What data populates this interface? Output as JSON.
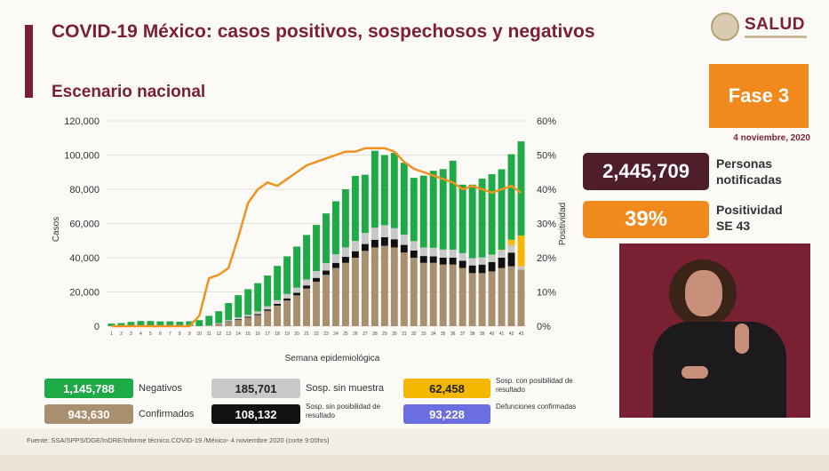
{
  "header": {
    "title": "COVID-19 México: casos positivos, sospechosos y negativos",
    "subtitle": "Escenario nacional",
    "logo_text": "SALUD"
  },
  "side": {
    "phase": "Fase 3",
    "date": "4 noviembre, 2020",
    "notified_value": "2,445,709",
    "notified_label_1": "Personas",
    "notified_label_2": "notificadas",
    "positivity_value": "39%",
    "positivity_label_1": "Positividad",
    "positivity_label_2": "SE 43"
  },
  "legend": {
    "negativos_value": "1,145,788",
    "negativos_label": "Negativos",
    "sin_muestra_value": "185,701",
    "sin_muestra_label": "Sosp. sin muestra",
    "con_posibilidad_value": "62,458",
    "con_posibilidad_label": "Sosp. con posibilidad de resultado",
    "confirmados_value": "943,630",
    "confirmados_label": "Confirmados",
    "sin_posibilidad_value": "108,132",
    "sin_posibilidad_label": "Sosp. sin posibilidad de resultado",
    "defunciones_value": "93,228",
    "defunciones_label": "Defunciones confirmadas"
  },
  "footer": {
    "source": "Fuente: SSA/SPPS/DGE/InDRE/Informe técnico.COVID-19 /México- 4 noviembre 2020 (corte 9:00hrs)"
  },
  "colors": {
    "confirmados": "#a88f6f",
    "sin_posibilidad": "#111111",
    "sin_muestra": "#c8c8c8",
    "con_posibilidad": "#f5b800",
    "negativos": "#1faa48",
    "positividad_line": "#f0931e",
    "brand": "#7a1f35"
  },
  "chart_data": {
    "type": "bar",
    "stacked": true,
    "xlabel": "Semana epidemiológica",
    "ylabel": "Casos",
    "y2label": "Positividad",
    "ylim": [
      0,
      120000
    ],
    "y2lim": [
      0,
      60
    ],
    "yticks": [
      "0",
      "20,000",
      "40,000",
      "60,000",
      "80,000",
      "100,000",
      "120,000"
    ],
    "y2ticks": [
      "0%",
      "10%",
      "20%",
      "30%",
      "40%",
      "50%",
      "60%"
    ],
    "categories": [
      "1",
      "2",
      "3",
      "4",
      "5",
      "6",
      "7",
      "8",
      "9",
      "10",
      "11",
      "12",
      "13",
      "14",
      "15",
      "16",
      "17",
      "18",
      "19",
      "20",
      "21",
      "22",
      "23",
      "24",
      "25",
      "26",
      "27",
      "28",
      "29",
      "30",
      "31",
      "32",
      "33",
      "34",
      "35",
      "36",
      "37",
      "38",
      "39",
      "40",
      "41",
      "42",
      "43"
    ],
    "series": [
      {
        "name": "Confirmados",
        "color_key": "confirmados",
        "values": [
          0,
          0,
          0,
          0,
          0,
          0,
          0,
          0,
          0,
          0,
          300,
          1200,
          2500,
          3800,
          5000,
          6500,
          9000,
          12000,
          15000,
          18000,
          22000,
          26000,
          30000,
          34000,
          37000,
          40000,
          44000,
          46000,
          47000,
          46000,
          43000,
          40000,
          37000,
          37000,
          36000,
          36000,
          34000,
          31000,
          31000,
          32000,
          34000,
          35000,
          33000
        ]
      },
      {
        "name": "Sosp. sin posibilidad de resultado",
        "color_key": "sin_posibilidad",
        "values": [
          0,
          0,
          0,
          0,
          0,
          0,
          0,
          0,
          0,
          0,
          50,
          150,
          300,
          400,
          500,
          600,
          800,
          1000,
          1200,
          1500,
          1800,
          2200,
          2500,
          3000,
          3500,
          3800,
          4000,
          4500,
          5000,
          4800,
          4500,
          4200,
          4000,
          3800,
          4000,
          4000,
          4200,
          4500,
          5000,
          5500,
          6000,
          8000,
          0
        ]
      },
      {
        "name": "Sosp. sin muestra",
        "color_key": "sin_muestra",
        "values": [
          0,
          0,
          0,
          0,
          0,
          0,
          0,
          0,
          0,
          0,
          150,
          400,
          700,
          900,
          1100,
          1500,
          1800,
          2200,
          2600,
          3000,
          3500,
          4000,
          4400,
          5000,
          5500,
          6000,
          6500,
          7000,
          7000,
          6500,
          6000,
          5500,
          5000,
          5000,
          4800,
          4700,
          4500,
          4200,
          4200,
          4300,
          4400,
          4500,
          2000
        ]
      },
      {
        "name": "Sosp. con posibilidad de resultado",
        "color_key": "con_posibilidad",
        "values": [
          0,
          0,
          0,
          0,
          0,
          0,
          0,
          0,
          0,
          0,
          0,
          0,
          0,
          0,
          0,
          0,
          0,
          0,
          0,
          0,
          0,
          0,
          0,
          0,
          0,
          0,
          0,
          0,
          0,
          0,
          0,
          0,
          0,
          0,
          0,
          0,
          0,
          0,
          0,
          0,
          300,
          3000,
          18000
        ]
      },
      {
        "name": "Negativos",
        "color_key": "negativos",
        "values": [
          1500,
          1800,
          2500,
          3000,
          3000,
          2800,
          2800,
          2600,
          2800,
          3500,
          5500,
          7000,
          10000,
          13000,
          15000,
          16500,
          18000,
          20000,
          22000,
          24000,
          26000,
          27000,
          29000,
          31000,
          34000,
          38000,
          34000,
          45000,
          41000,
          44000,
          42000,
          37000,
          42000,
          45000,
          47000,
          52000,
          40000,
          43000,
          46000,
          47000,
          47000,
          50000,
          55000
        ]
      }
    ],
    "positivity_line": {
      "name": "Positividad",
      "values": [
        0,
        0,
        0,
        0,
        0,
        0,
        0,
        0,
        0,
        3,
        14,
        15,
        17,
        26,
        36,
        40,
        42,
        41,
        43,
        45,
        47,
        48,
        49,
        50,
        51,
        51,
        52,
        52,
        52,
        51,
        48,
        46,
        45,
        44,
        43,
        42,
        40,
        41,
        40,
        39,
        40,
        41,
        39
      ]
    }
  }
}
